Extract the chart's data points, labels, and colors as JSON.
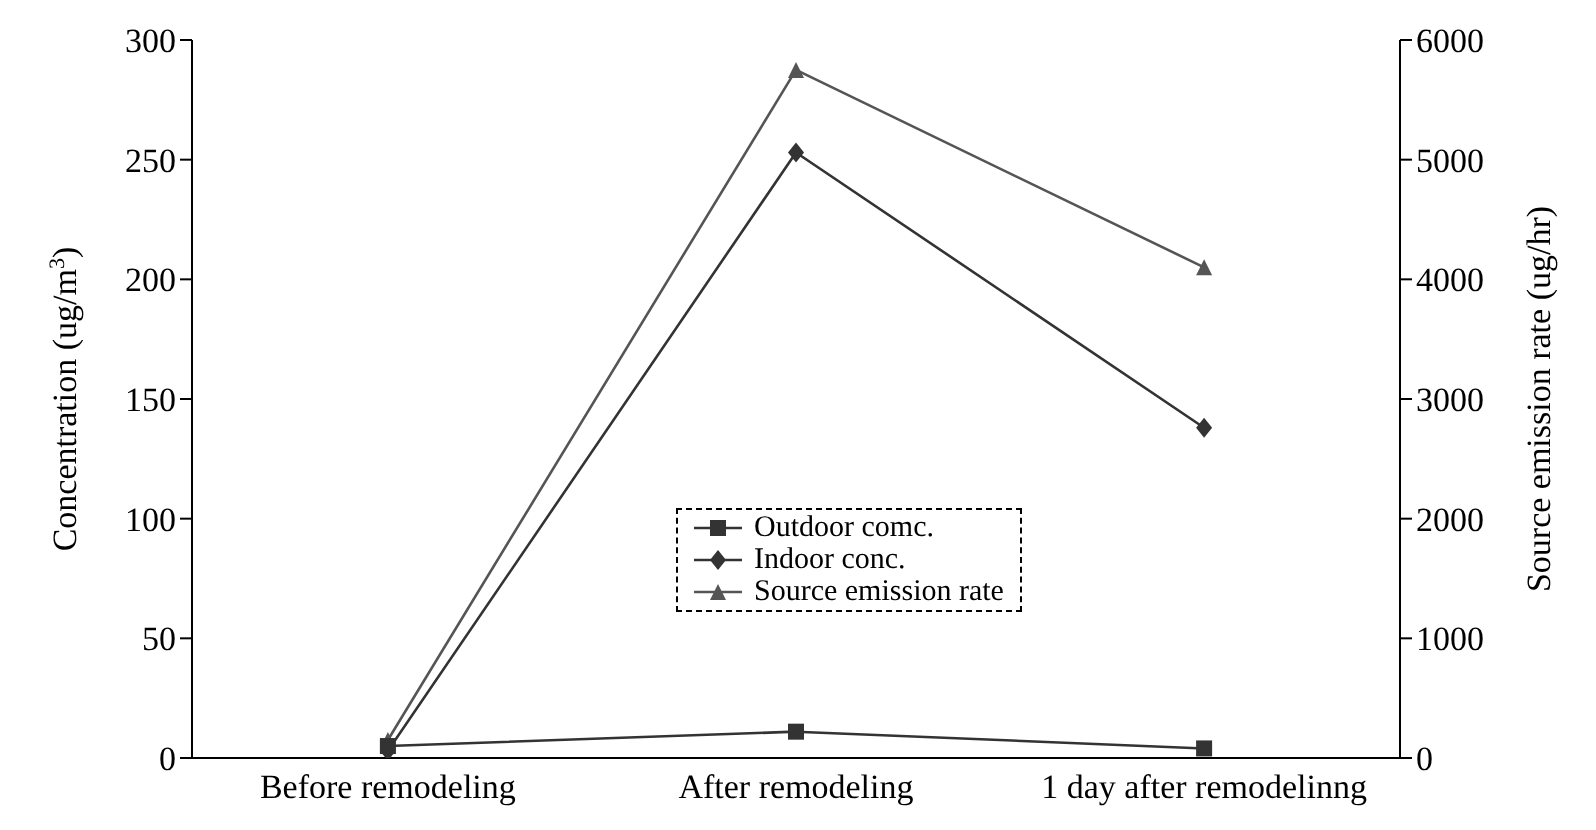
{
  "chart_data": {
    "type": "line",
    "categories": [
      "Before remodeling",
      "After remodeling",
      "1 day after remodelinng"
    ],
    "ylabel": "Concentration (ug/m$^{3}$)",
    "y2label": "Source emission rate (ug/hr)",
    "ylim": [
      0,
      300
    ],
    "yticks": [
      0,
      50,
      100,
      150,
      200,
      250,
      300
    ],
    "y2lim": [
      0,
      6000
    ],
    "y2ticks": [
      0,
      1000,
      2000,
      3000,
      4000,
      5000,
      6000
    ],
    "grid": false,
    "legend": "center",
    "line_style": "solid",
    "series": [
      {
        "name": "Outdoor comc.",
        "color": "#333333",
        "values": [
          5,
          11,
          4
        ],
        "marker": "square"
      },
      {
        "name": "Indoor conc.",
        "color": "#333333",
        "values": [
          3,
          253,
          138
        ],
        "marker": "diamond"
      },
      {
        "name": "Source emission rate",
        "color": "#555555",
        "values": [
          150,
          5750,
          4100
        ],
        "marker": "triangle",
        "axis": "y2"
      }
    ]
  }
}
